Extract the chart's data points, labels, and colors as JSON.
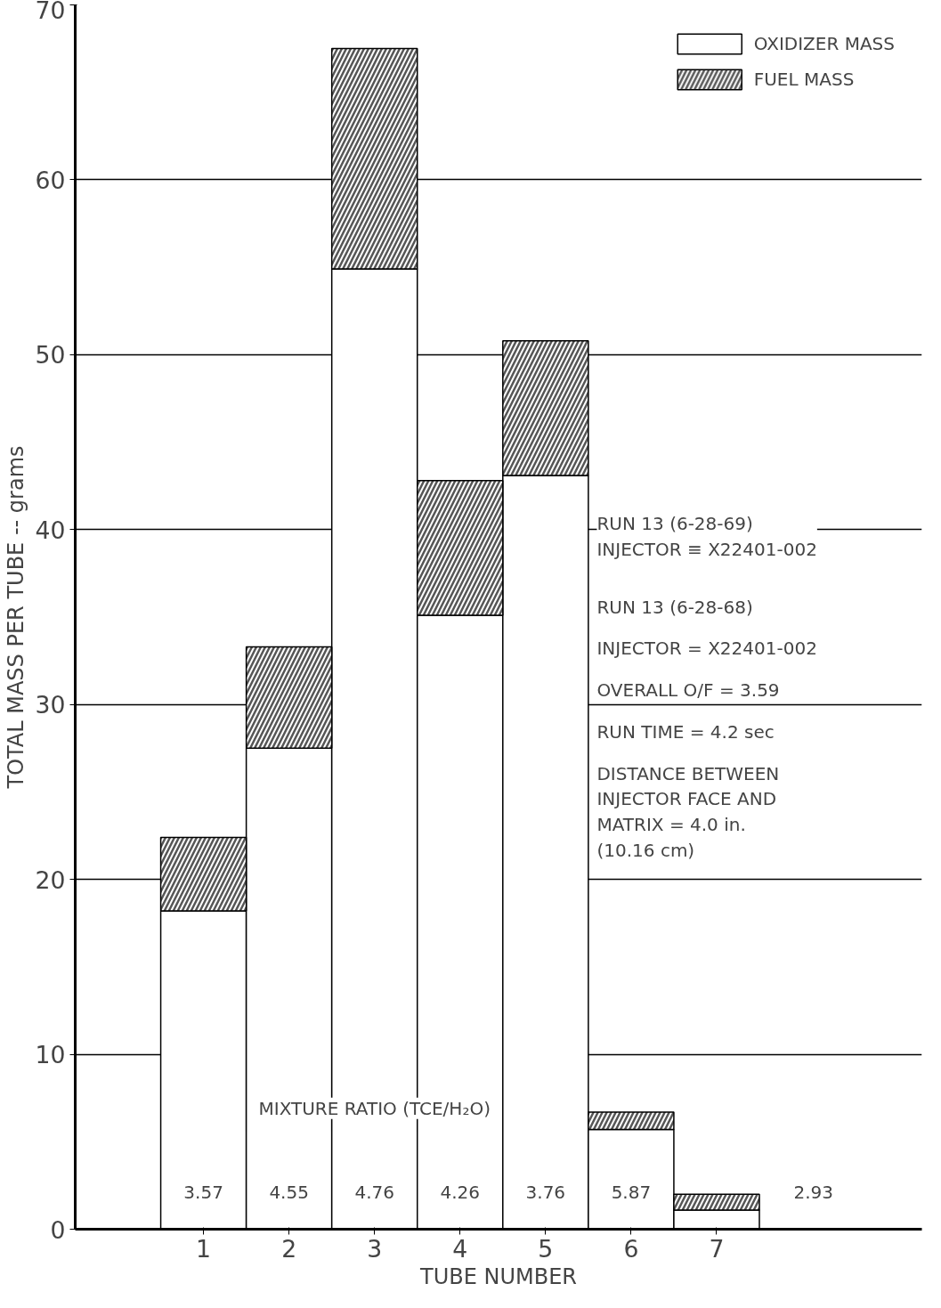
{
  "chart_data": {
    "type": "bar",
    "stacked": true,
    "xlabel": "TUBE NUMBER",
    "ylabel": "TOTAL MASS PER TUBE -- grams",
    "categories": [
      "1",
      "2",
      "3",
      "4",
      "5",
      "6",
      "7"
    ],
    "series": [
      {
        "name": "OXIDIZER MASS",
        "color": "#ffffff",
        "values": [
          18.2,
          27.5,
          54.9,
          35.1,
          43.1,
          5.7,
          1.1
        ]
      },
      {
        "name": "FUEL MASS",
        "color": "#555555",
        "values": [
          4.2,
          5.8,
          12.6,
          7.7,
          7.7,
          1.0,
          0.9
        ]
      }
    ],
    "ylim": [
      0,
      70
    ],
    "yticks": [
      0,
      10,
      20,
      30,
      40,
      50,
      60,
      70
    ],
    "grid": "y",
    "legend": "top right",
    "annotations": [
      "RUN 13  (6-28-69)\nINJECTOR ≡ X22401-002",
      "RUN 13  (6-28-68)",
      "INJECTOR = X22401-002",
      "OVERALL O/F = 3.59",
      "RUN TIME = 4.2 sec",
      "DISTANCE BETWEEN\nINJECTOR FACE AND\nMATRIX = 4.0 in.\n        (10.16 cm)",
      "MIXTURE RATIO (TCE/H₂O)",
      "3.57",
      "4.55",
      "4.76",
      "4.26",
      "3.76",
      "5.87",
      "2.93"
    ]
  }
}
